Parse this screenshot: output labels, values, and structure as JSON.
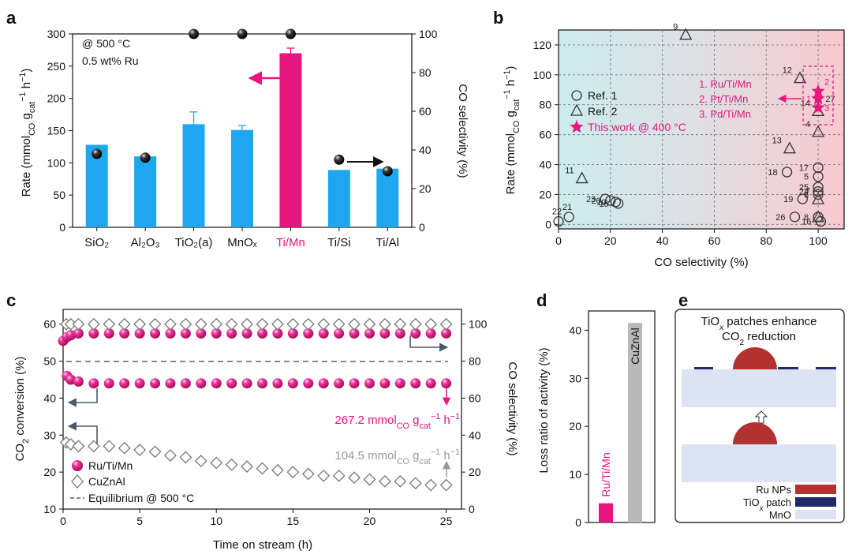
{
  "colors": {
    "blue": "#1ea7f0",
    "magenta": "#e6157f",
    "grey": "#b9b9b9",
    "dark": "#222222",
    "navy": "#1f2a6b",
    "ru": "#b23232",
    "mno": "#dce3f2"
  },
  "panels": {
    "a": "a",
    "b": "b",
    "c": "c",
    "d": "d",
    "e": "e"
  },
  "chart_data": [
    {
      "id": "a",
      "type": "bar",
      "categories": [
        "SiO₂",
        "Al₂O₃",
        "TiO₂(a)",
        "MnOₓ",
        "Ti/Mn",
        "Ti/Si",
        "Ti/Al"
      ],
      "series": [
        {
          "role": "rate",
          "values": [
            128,
            110,
            160,
            151,
            270,
            89,
            91
          ],
          "errors": [
            0,
            0,
            19,
            7,
            8,
            0,
            0
          ]
        },
        {
          "role": "CO selectivity",
          "values": [
            38,
            36,
            100,
            100,
            100,
            35,
            29
          ]
        }
      ],
      "ylabel": "Rate (mmol_CO g_cat⁻¹ h⁻¹)",
      "ylabel_parts": [
        "Rate (mmol",
        "CO",
        " g",
        "cat",
        "−1",
        " h",
        "−1",
        ")"
      ],
      "y2label": "CO selectivity (%)",
      "ylim": [
        0,
        300
      ],
      "y2lim": [
        0,
        100
      ],
      "yticks": [
        "0",
        "50",
        "100",
        "150",
        "200",
        "250",
        "300"
      ],
      "y2ticks": [
        "0",
        "20",
        "40",
        "60",
        "80",
        "100"
      ],
      "annotations": [
        "@ 500 °C",
        "0.5 wt% Ru"
      ],
      "highlight": "Ti/Mn"
    },
    {
      "id": "b",
      "type": "scatter",
      "xlabel": "CO selectivity (%)",
      "ylabel": "Rate (mmol_CO g_cat⁻¹ h⁻¹)",
      "ylabel_parts": [
        "Rate (mmol",
        "CO",
        " g",
        "cat",
        "−1",
        " h",
        "−1",
        ")"
      ],
      "xlim": [
        0,
        110
      ],
      "ylim": [
        -3,
        130
      ],
      "xticks": [
        "0",
        "20",
        "40",
        "60",
        "80",
        "100"
      ],
      "yticks": [
        "0",
        "20",
        "40",
        "60",
        "80",
        "100",
        "120"
      ],
      "grid": true,
      "legend": [
        "Ref. 1",
        "Ref. 2",
        "This work @ 400 °C"
      ],
      "series": [
        {
          "name": "Ref. 1",
          "marker": "circle",
          "points": [
            {
              "x": 0,
              "y": 2,
              "label": "22"
            },
            {
              "x": 4,
              "y": 5,
              "label": "21"
            },
            {
              "x": 18,
              "y": 17,
              "label": "23"
            },
            {
              "x": 20,
              "y": 16,
              "label": "20"
            },
            {
              "x": 22,
              "y": 15,
              "label": "10"
            },
            {
              "x": 23,
              "y": 14,
              "label": "15"
            },
            {
              "x": 88,
              "y": 35,
              "label": "18"
            },
            {
              "x": 91,
              "y": 5,
              "label": "26"
            },
            {
              "x": 94,
              "y": 17,
              "label": "19"
            },
            {
              "x": 100,
              "y": 38,
              "label": "17"
            },
            {
              "x": 100,
              "y": 32,
              "label": "5"
            },
            {
              "x": 100,
              "y": 25,
              "label": "25"
            },
            {
              "x": 100,
              "y": 22,
              "label": "24"
            },
            {
              "x": 100,
              "y": 20,
              "label": "6"
            },
            {
              "x": 100,
              "y": 5,
              "label": "8"
            },
            {
              "x": 101,
              "y": 2,
              "label": "16"
            }
          ]
        },
        {
          "name": "Ref. 2",
          "marker": "triangle",
          "points": [
            {
              "x": 9,
              "y": 31,
              "label": "11"
            },
            {
              "x": 49,
              "y": 127,
              "label": "9"
            },
            {
              "x": 89,
              "y": 51,
              "label": "13"
            },
            {
              "x": 93,
              "y": 98,
              "label": "12"
            },
            {
              "x": 100,
              "y": 76,
              "label": "14"
            },
            {
              "x": 100,
              "y": 62,
              "label": "4"
            },
            {
              "x": 100,
              "y": 17,
              "label": "7"
            },
            {
              "x": 100,
              "y": 5,
              "label": ""
            }
          ]
        },
        {
          "name": "This work @ 400 °C",
          "marker": "star",
          "points": [
            {
              "x": 100,
              "y": 89,
              "label": "2"
            },
            {
              "x": 100,
              "y": 84,
              "label": "1"
            },
            {
              "x": 100,
              "y": 78,
              "label": "3"
            }
          ]
        }
      ],
      "extra_labels": [
        "27"
      ],
      "annotations": [
        "1. Ru/Ti/Mn",
        "2. Pt/Ti/Mn",
        "3. Pd/Ti/Mn"
      ]
    },
    {
      "id": "c",
      "type": "scatter",
      "xlabel": "Time on stream (h)",
      "ylabel": "CO₂ conversion (%)",
      "y2label": "CO selectivity (%)",
      "xlim": [
        0,
        26
      ],
      "ylim": [
        10,
        64
      ],
      "y2lim": [
        0,
        108
      ],
      "xticks": [
        "0",
        "5",
        "10",
        "15",
        "20",
        "25"
      ],
      "yticks": [
        "10",
        "20",
        "30",
        "40",
        "50",
        "60"
      ],
      "y2ticks": [
        "0",
        "20",
        "40",
        "60",
        "80",
        "100"
      ],
      "equilibrium": 50,
      "series": [
        {
          "name": "Ru/Ti/Mn",
          "marker": "sphere",
          "axis": "right",
          "x": [
            0,
            0.25,
            0.5,
            1,
            2,
            3,
            4,
            5,
            6,
            7,
            8,
            9,
            10,
            11,
            12,
            13,
            14,
            15,
            16,
            17,
            18,
            19,
            20,
            21,
            22,
            23,
            24,
            25
          ],
          "y": [
            91,
            93,
            94,
            95,
            95,
            95,
            95,
            95,
            95,
            95,
            95,
            95,
            95,
            95,
            95,
            95,
            95,
            95,
            95,
            95,
            95,
            95,
            95,
            95,
            95,
            95,
            95,
            95
          ]
        },
        {
          "name": "Ru/Ti/Mn",
          "marker": "sphere",
          "axis": "left",
          "x": [
            0.25,
            0.5,
            1,
            2,
            3,
            4,
            5,
            6,
            7,
            8,
            9,
            10,
            11,
            12,
            13,
            14,
            15,
            16,
            17,
            18,
            19,
            20,
            21,
            22,
            23,
            24,
            25
          ],
          "y": [
            46,
            45,
            44.5,
            44,
            44,
            44,
            44,
            44,
            44,
            44,
            44,
            44,
            44,
            44,
            44,
            44,
            44,
            44,
            44,
            44,
            44,
            44,
            44,
            44,
            44,
            44,
            44
          ]
        },
        {
          "name": "CuZnAl",
          "marker": "diamond",
          "axis": "right",
          "x": [
            0.2,
            0.5,
            1,
            2,
            3,
            4,
            5,
            6,
            7,
            8,
            9,
            10,
            11,
            12,
            13,
            14,
            15,
            16,
            17,
            18,
            19,
            20,
            21,
            22,
            23,
            24,
            25
          ],
          "y": [
            100,
            100,
            100,
            100,
            100,
            100,
            100,
            100,
            100,
            100,
            100,
            100,
            100,
            100,
            100,
            100,
            100,
            100,
            100,
            100,
            100,
            100,
            100,
            100,
            100,
            100,
            100
          ]
        },
        {
          "name": "CuZnAl",
          "marker": "diamond",
          "axis": "left",
          "x": [
            0.2,
            0.5,
            1,
            2,
            3,
            4,
            5,
            6,
            7,
            8,
            9,
            10,
            11,
            12,
            13,
            14,
            15,
            16,
            17,
            18,
            19,
            20,
            21,
            22,
            23,
            24,
            25
          ],
          "y": [
            28,
            27.5,
            27,
            27,
            27,
            26.5,
            26,
            25.5,
            24.5,
            24,
            23,
            22.5,
            22,
            21.5,
            21,
            20.5,
            20,
            19.5,
            19,
            19,
            18.5,
            18,
            17.5,
            17.5,
            17,
            16.5,
            16.5
          ]
        }
      ],
      "legend": [
        "Ru/Ti/Mn",
        "CuZnAl",
        "Equilibrium @ 500 °C"
      ],
      "annotations": [
        {
          "parts": [
            "267.2 mmol",
            "CO",
            " g",
            "cat",
            "−1",
            " h",
            "−1"
          ]
        },
        {
          "parts": [
            "104.5 mmol",
            "CO",
            " g",
            "cat",
            "−1",
            " h",
            "−1"
          ]
        }
      ]
    },
    {
      "id": "d",
      "type": "bar",
      "categories": [
        "Ru/Ti/Mn",
        "CuZnAl"
      ],
      "values": [
        4,
        41.5
      ],
      "ylabel": "Loss ratio of activity (%)",
      "ylim": [
        0,
        44
      ],
      "yticks": [
        "0",
        "10",
        "20",
        "30",
        "40"
      ]
    }
  ],
  "schematic": {
    "title_line1": "TiOₓ patches enhance",
    "title_line2": "CO₂ reduction",
    "legend": [
      "Ru NPs",
      "TiOₓ patch",
      "MnO"
    ]
  }
}
